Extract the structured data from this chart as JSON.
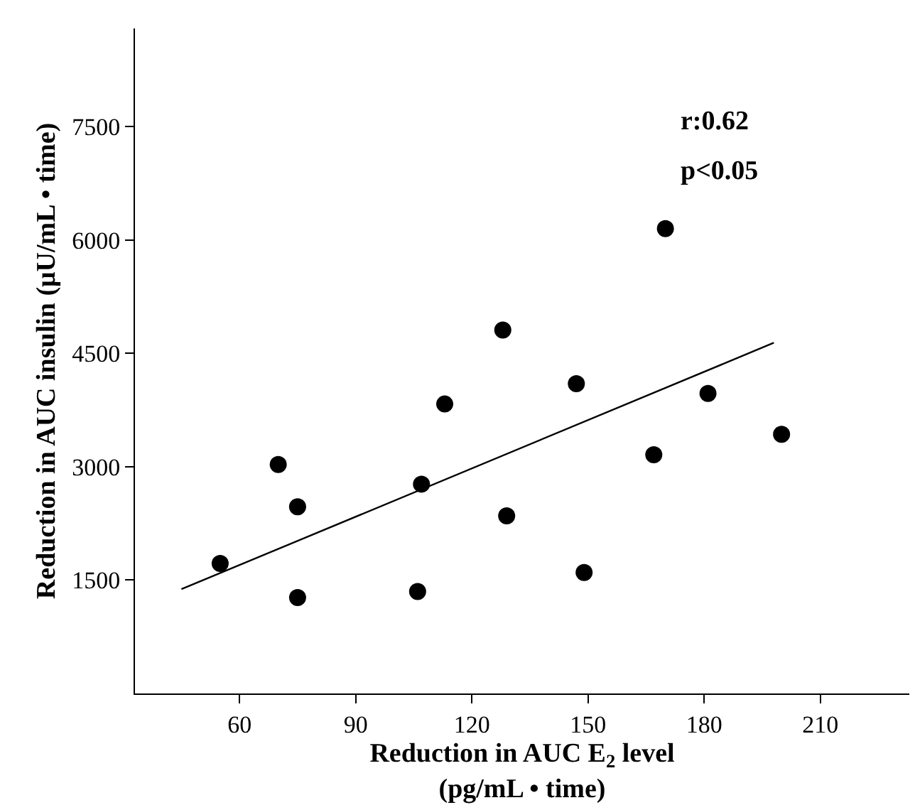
{
  "chart_data": {
    "type": "scatter",
    "xlabel": "Reduction in AUC E$_{2}$ level\n(pg/mL • time)",
    "ylabel": "Reduction in AUC insulin (μU/mL • time)",
    "annotations": [
      "r:0.62",
      "p<0.05"
    ],
    "xlim": [
      33,
      233
    ],
    "xticks": [
      60,
      90,
      120,
      150,
      180,
      210
    ],
    "ylim": [
      0,
      8800
    ],
    "yticks": [
      1500,
      3000,
      4500,
      6000,
      7500
    ],
    "series": [
      {
        "marker": "circle",
        "color": "#000000",
        "x": [
          55,
          70,
          75,
          75,
          106,
          107,
          113,
          128,
          129,
          147,
          149,
          167,
          170,
          181,
          200
        ],
        "values": [
          1720,
          3030,
          2470,
          1270,
          1350,
          2770,
          3830,
          4810,
          2350,
          4100,
          1600,
          3160,
          6150,
          3970,
          3430
        ]
      },
      {
        "type": "line",
        "marker": "none",
        "line_style": "solid",
        "color": "#000000",
        "x": [
          45,
          198
        ],
        "values": [
          1380,
          4640
        ]
      }
    ]
  }
}
